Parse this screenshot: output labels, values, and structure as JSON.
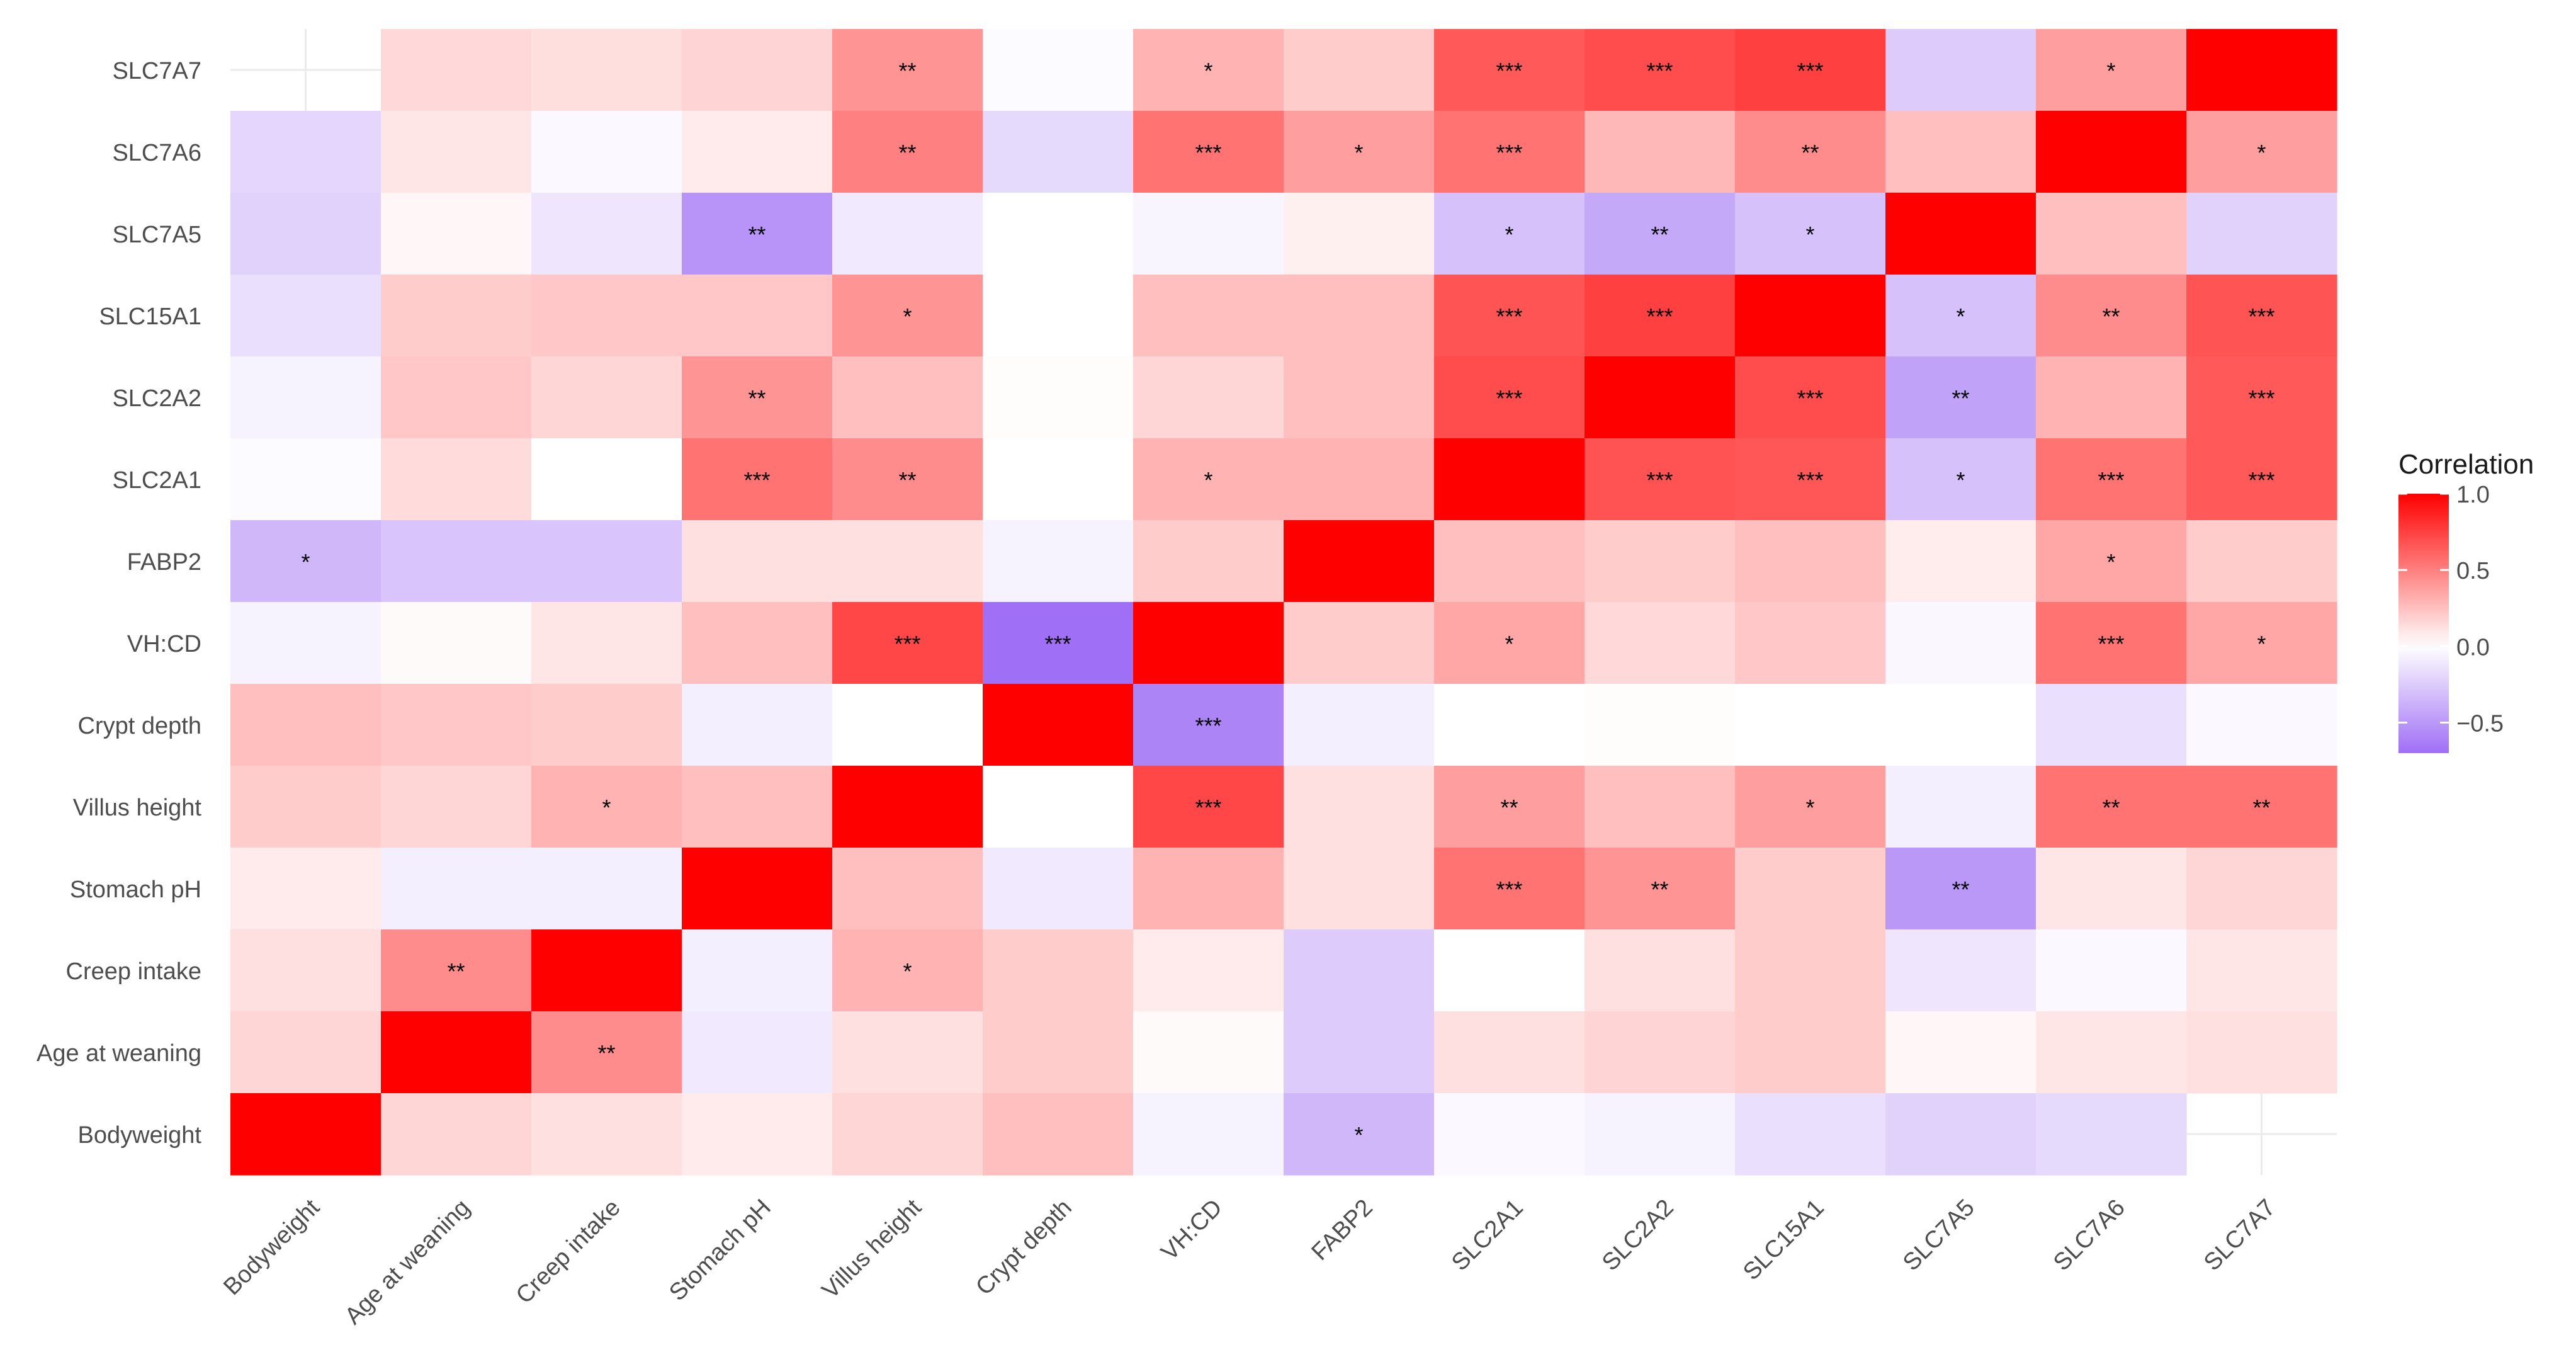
{
  "chart_data": {
    "type": "heatmap",
    "title": "",
    "xlabel": "",
    "ylabel": "",
    "x_categories": [
      "Bodyweight",
      "Age at weaning",
      "Creep intake",
      "Stomach pH",
      "Villus height",
      "Crypt depth",
      "VH:CD",
      "FABP2",
      "SLC2A1",
      "SLC2A2",
      "SLC15A1",
      "SLC7A5",
      "SLC7A6",
      "SLC7A7"
    ],
    "y_categories": [
      "SLC7A7",
      "SLC7A6",
      "SLC7A5",
      "SLC15A1",
      "SLC2A2",
      "SLC2A1",
      "FABP2",
      "VH:CD",
      "Crypt depth",
      "Villus height",
      "Stomach pH",
      "Creep intake",
      "Age at weaning",
      "Bodyweight"
    ],
    "values": [
      [
        null,
        0.15,
        0.13,
        0.17,
        0.42,
        -0.02,
        0.3,
        0.2,
        0.65,
        0.7,
        0.75,
        -0.25,
        0.38,
        1.0
      ],
      [
        -0.2,
        0.1,
        -0.03,
        0.08,
        0.5,
        -0.18,
        0.55,
        0.38,
        0.55,
        0.28,
        0.45,
        0.25,
        1.0,
        0.38
      ],
      [
        -0.22,
        0.03,
        -0.12,
        -0.52,
        -0.1,
        0.0,
        -0.05,
        0.06,
        -0.3,
        -0.42,
        -0.3,
        1.0,
        0.25,
        -0.22
      ],
      [
        -0.15,
        0.2,
        0.22,
        0.22,
        0.42,
        0.0,
        0.25,
        0.25,
        0.67,
        0.75,
        1.0,
        -0.3,
        0.45,
        0.67
      ],
      [
        -0.06,
        0.22,
        0.16,
        0.42,
        0.25,
        0.01,
        0.16,
        0.25,
        0.7,
        1.0,
        0.7,
        -0.45,
        0.3,
        0.65
      ],
      [
        -0.02,
        0.14,
        0.0,
        0.55,
        0.45,
        0.0,
        0.3,
        0.3,
        1.0,
        0.68,
        0.66,
        -0.3,
        0.55,
        0.65
      ],
      [
        -0.35,
        -0.28,
        -0.28,
        0.12,
        0.12,
        -0.06,
        0.2,
        1.0,
        0.25,
        0.2,
        0.25,
        0.07,
        0.35,
        0.2
      ],
      [
        -0.06,
        0.02,
        0.1,
        0.25,
        0.72,
        -0.7,
        1.0,
        0.2,
        0.35,
        0.15,
        0.22,
        -0.04,
        0.55,
        0.35
      ],
      [
        0.25,
        0.22,
        0.2,
        -0.08,
        0.0,
        1.0,
        -0.6,
        -0.08,
        0.0,
        0.01,
        0.0,
        0.0,
        -0.15,
        -0.03
      ],
      [
        0.2,
        0.16,
        0.3,
        0.25,
        1.0,
        0.0,
        0.72,
        0.12,
        0.38,
        0.25,
        0.38,
        -0.08,
        0.55,
        0.55
      ],
      [
        0.08,
        -0.08,
        -0.08,
        1.0,
        0.25,
        -0.1,
        0.3,
        0.12,
        0.55,
        0.42,
        0.2,
        -0.5,
        0.1,
        0.16
      ],
      [
        0.12,
        0.45,
        1.0,
        -0.08,
        0.3,
        0.2,
        0.08,
        -0.25,
        0.0,
        0.12,
        0.2,
        -0.12,
        -0.03,
        0.1
      ],
      [
        0.16,
        1.0,
        0.45,
        -0.1,
        0.12,
        0.2,
        0.02,
        -0.25,
        0.12,
        0.17,
        0.2,
        0.03,
        0.1,
        0.12
      ],
      [
        1.0,
        0.16,
        0.12,
        0.08,
        0.16,
        0.25,
        -0.06,
        -0.35,
        -0.03,
        -0.06,
        -0.15,
        -0.22,
        -0.18,
        null
      ]
    ],
    "significance": [
      [
        "",
        "",
        "",
        "",
        "**",
        "",
        "*",
        "",
        "***",
        "***",
        "***",
        "",
        "*",
        ""
      ],
      [
        "",
        "",
        "",
        "",
        "**",
        "",
        "***",
        "*",
        "***",
        "",
        "**",
        "",
        "",
        "*"
      ],
      [
        "",
        "",
        "",
        "**",
        "",
        "",
        "",
        "",
        "*",
        "**",
        "*",
        "",
        "",
        ""
      ],
      [
        "",
        "",
        "",
        "",
        "*",
        "",
        "",
        "",
        "***",
        "***",
        "",
        "*",
        "**",
        "***"
      ],
      [
        "",
        "",
        "",
        "**",
        "",
        "",
        "",
        "",
        "***",
        "",
        "***",
        "**",
        "",
        "***"
      ],
      [
        "",
        "",
        "",
        "***",
        "**",
        "",
        "*",
        "",
        "",
        "***",
        "***",
        "*",
        "***",
        "***"
      ],
      [
        "*",
        "",
        "",
        "",
        "",
        "",
        "",
        "",
        "",
        "",
        "",
        "",
        "*",
        ""
      ],
      [
        "",
        "",
        "",
        "",
        "***",
        "***",
        "",
        "",
        "*",
        "",
        "",
        "",
        "***",
        "*"
      ],
      [
        "",
        "",
        "",
        "",
        "",
        "",
        "***",
        "",
        "",
        "",
        "",
        "",
        "",
        ""
      ],
      [
        "",
        "",
        "*",
        "",
        "",
        "",
        "***",
        "",
        "**",
        "",
        "*",
        "",
        "**",
        "**"
      ],
      [
        "",
        "",
        "",
        "",
        "",
        "",
        "",
        "",
        "***",
        "**",
        "",
        "**",
        "",
        ""
      ],
      [
        "",
        "**",
        "",
        "",
        "*",
        "",
        "",
        "",
        "",
        "",
        "",
        "",
        "",
        ""
      ],
      [
        "",
        "",
        "**",
        "",
        "",
        "",
        "",
        "",
        "",
        "",
        "",
        "",
        "",
        ""
      ],
      [
        "",
        "",
        "",
        "",
        "",
        "",
        "",
        "*",
        "",
        "",
        "",
        "",
        "",
        ""
      ]
    ],
    "color_scale": {
      "low_color": "#9f6ff5",
      "mid_color": "#ffffff",
      "high_color": "#ff0000",
      "limits": [
        -0.7,
        1.0
      ]
    },
    "legend": {
      "title": "Correlation",
      "ticks": [
        1.0,
        0.5,
        0.0,
        -0.5
      ],
      "tick_labels": [
        "1.0",
        "0.5",
        "0.0",
        "−0.5"
      ],
      "placement": "right"
    },
    "grid": true
  }
}
